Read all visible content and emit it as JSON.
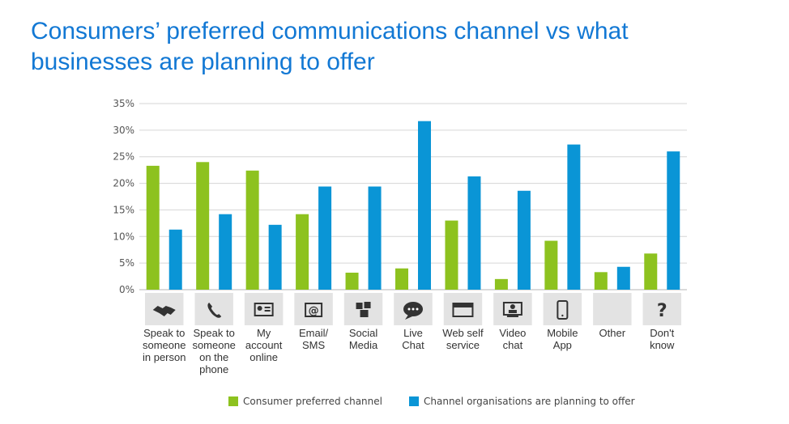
{
  "title_lines": [
    "Consumers’ preferred communications channel vs what",
    "businesses are planning to offer"
  ],
  "chart_data": {
    "type": "bar",
    "ylim": [
      0,
      35
    ],
    "y_ticks": [
      "0%",
      "5%",
      "10%",
      "15%",
      "20%",
      "25%",
      "30%",
      "35%"
    ],
    "grid": true,
    "legend_position": "bottom",
    "categories": [
      {
        "label": [
          "Speak to",
          "someone",
          "in person"
        ],
        "icon": "handshake-icon"
      },
      {
        "label": [
          "Speak to",
          "someone",
          "on the",
          "phone"
        ],
        "icon": "phone-icon"
      },
      {
        "label": [
          "My",
          "account",
          "online"
        ],
        "icon": "account-card-icon"
      },
      {
        "label": [
          "Email/",
          "SMS"
        ],
        "icon": "email-icon"
      },
      {
        "label": [
          "Social",
          "Media"
        ],
        "icon": "social-media-icon"
      },
      {
        "label": [
          "Live",
          "Chat"
        ],
        "icon": "chat-bubble-icon"
      },
      {
        "label": [
          "Web self",
          "service"
        ],
        "icon": "web-browser-icon"
      },
      {
        "label": [
          "Video",
          "chat"
        ],
        "icon": "video-monitor-icon"
      },
      {
        "label": [
          "Mobile",
          "App"
        ],
        "icon": "mobile-phone-icon"
      },
      {
        "label": [
          "Other"
        ],
        "icon": "blank-icon"
      },
      {
        "label": [
          "Don't",
          "know"
        ],
        "icon": "question-mark-icon"
      }
    ],
    "series": [
      {
        "name": "Consumer preferred channel",
        "color": "#8dc21f",
        "values": [
          23.3,
          24,
          22.4,
          14.2,
          3.2,
          4,
          13,
          2,
          9.2,
          3.3,
          6.8
        ]
      },
      {
        "name": "Channel organisations are planning to offer",
        "color": "#0a95d6",
        "values": [
          11.3,
          14.2,
          12.2,
          19.4,
          19.4,
          31.7,
          21.3,
          18.6,
          27.3,
          4.3,
          26
        ]
      }
    ]
  }
}
